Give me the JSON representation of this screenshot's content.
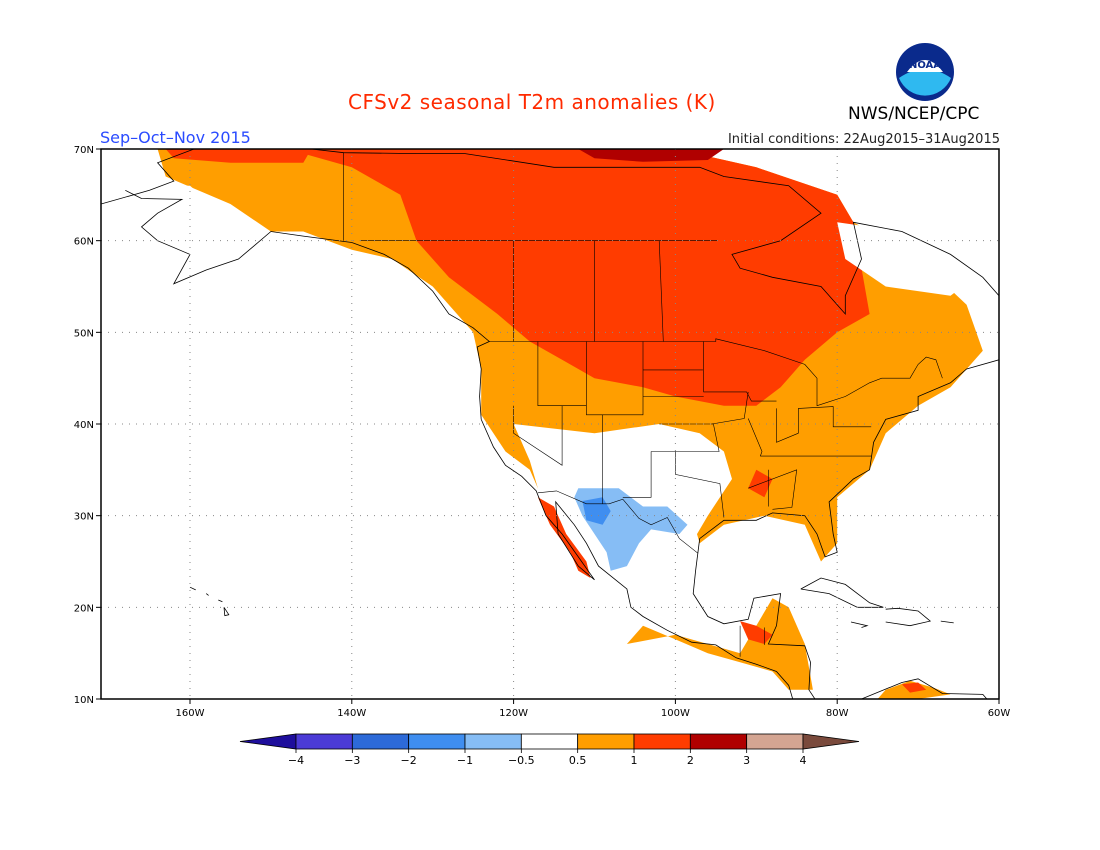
{
  "header": {
    "title": "CFSv2 seasonal T2m anomalies (K)",
    "agency": "NWS/NCEP/CPC",
    "season": "Sep–Oct–Nov 2015",
    "initial_conditions": "Initial conditions: 22Aug2015–31Aug2015",
    "logo_text": "NOAA"
  },
  "map": {
    "lat_labels": [
      "70N",
      "60N",
      "50N",
      "40N",
      "30N",
      "20N",
      "10N"
    ],
    "lon_labels": [
      "160W",
      "140W",
      "120W",
      "100W",
      "80W",
      "60W"
    ],
    "lat_range": [
      10,
      70
    ],
    "lon_range": [
      -171,
      -60
    ],
    "grid": true
  },
  "legend": {
    "tick_labels": [
      "-4",
      "-3",
      "-2",
      "-1",
      "-0.5",
      "0.5",
      "1",
      "2",
      "3",
      "4"
    ],
    "colors": [
      "#1e0e9c",
      "#4b3bd6",
      "#2d6ad8",
      "#3f8ef0",
      "#86bdf5",
      "#ffffff",
      "#ff9e00",
      "#ff3c00",
      "#b00000",
      "#d4a592",
      "#7a4a3c"
    ]
  },
  "colors": {
    "title": "#ff2a00",
    "season": "#2a4bff",
    "light_warm": "#ff9e00",
    "warm": "#ff3c00",
    "dark_warm": "#b00000",
    "light_cool": "#86bdf5",
    "cool": "#3f8ef0"
  }
}
